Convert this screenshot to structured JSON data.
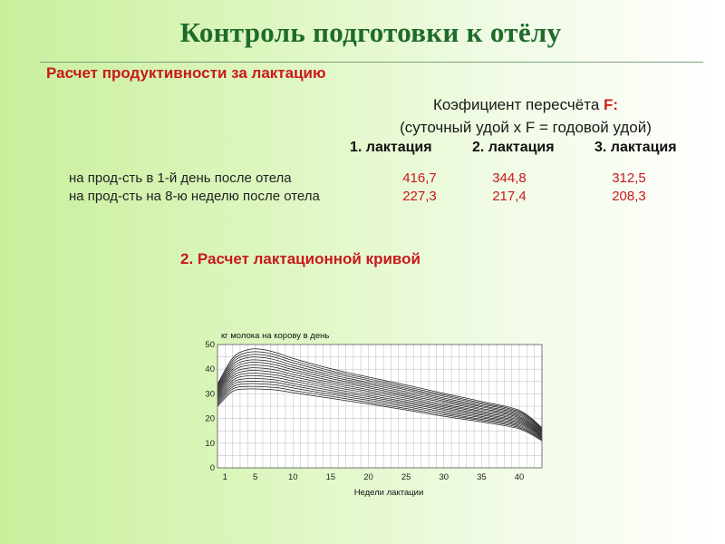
{
  "title": "Контроль подготовки к отёлу",
  "subtitle_productivity": "Расчет продуктивности за лактацию",
  "coefficient": {
    "title_prefix": "Коэфициент пересчёта ",
    "title_accent": "F:",
    "formula": "(суточный удой х F = годовой удой)",
    "headers": [
      "1. лактация",
      "2. лактация",
      "3. лактация"
    ]
  },
  "table": {
    "rows": [
      {
        "label": "на прод-сть в 1-й день после отела",
        "values": [
          "416,7",
          "344,8",
          "312,5"
        ]
      },
      {
        "label": "на прод-сть на 8-ю неделю после отела",
        "values": [
          "227,3",
          "217,4",
          "208,3"
        ]
      }
    ]
  },
  "subtitle_curve": "2. Расчет лактационной кривой",
  "chart_data": {
    "type": "line",
    "title": "",
    "ylabel": "кг молока на корову в день",
    "xlabel": "Недели лактации",
    "xlim": [
      0,
      43
    ],
    "ylim": [
      0,
      50
    ],
    "x_ticks": [
      "1",
      "5",
      "10",
      "15",
      "20",
      "25",
      "30",
      "35",
      "40"
    ],
    "y_ticks": [
      "0",
      "10",
      "20",
      "30",
      "40",
      "50"
    ],
    "grid": true,
    "line_color": "#1a1a1a",
    "x": [
      0,
      2,
      4,
      6,
      8,
      10,
      15,
      20,
      25,
      30,
      35,
      40,
      43
    ],
    "series": [
      {
        "values": [
          33.9,
          44.5,
          47.9,
          48.0,
          46.5,
          44.4,
          40.2,
          36.8,
          33.6,
          30.2,
          26.9,
          23.3,
          16.3
        ]
      },
      {
        "values": [
          33.3,
          43.6,
          46.8,
          46.9,
          45.5,
          43.5,
          39.4,
          36.1,
          32.9,
          29.6,
          26.3,
          22.8,
          15.9
        ]
      },
      {
        "values": [
          32.7,
          42.7,
          45.7,
          45.8,
          44.5,
          42.6,
          38.6,
          35.4,
          32.2,
          29.0,
          25.8,
          22.3,
          15.6
        ]
      },
      {
        "values": [
          32.1,
          41.8,
          44.7,
          44.7,
          43.5,
          41.6,
          37.8,
          34.6,
          31.6,
          28.3,
          25.2,
          21.8,
          15.2
        ]
      },
      {
        "values": [
          31.5,
          40.9,
          43.6,
          43.6,
          42.5,
          40.7,
          37.0,
          33.9,
          30.9,
          27.7,
          24.7,
          21.3,
          14.9
        ]
      },
      {
        "values": [
          30.9,
          40.0,
          42.6,
          42.6,
          41.5,
          39.8,
          36.2,
          33.2,
          30.2,
          27.1,
          24.1,
          20.8,
          14.5
        ]
      },
      {
        "values": [
          30.3,
          39.1,
          41.5,
          41.5,
          40.5,
          38.9,
          35.4,
          32.5,
          29.5,
          26.5,
          23.6,
          20.3,
          14.2
        ]
      },
      {
        "values": [
          29.7,
          38.2,
          40.4,
          40.4,
          39.5,
          37.9,
          34.6,
          31.7,
          28.9,
          25.8,
          23.0,
          19.8,
          13.8
        ]
      },
      {
        "values": [
          29.1,
          37.3,
          39.4,
          39.3,
          38.5,
          37.0,
          33.8,
          31.0,
          28.2,
          25.2,
          22.5,
          19.3,
          13.5
        ]
      },
      {
        "values": [
          28.5,
          36.4,
          38.3,
          38.2,
          37.5,
          36.1,
          33.0,
          30.3,
          27.5,
          24.6,
          21.9,
          18.8,
          13.1
        ]
      },
      {
        "values": [
          27.9,
          35.5,
          37.3,
          37.2,
          36.5,
          35.2,
          32.2,
          29.5,
          26.8,
          24.0,
          21.4,
          18.3,
          12.8
        ]
      },
      {
        "values": [
          27.3,
          34.6,
          36.2,
          36.1,
          35.5,
          34.2,
          31.4,
          28.8,
          26.2,
          23.4,
          20.8,
          17.8,
          12.4
        ]
      },
      {
        "values": [
          26.7,
          33.7,
          35.1,
          35.0,
          34.5,
          33.3,
          30.6,
          28.1,
          25.5,
          22.7,
          20.3,
          17.3,
          12.1
        ]
      },
      {
        "values": [
          26.1,
          32.8,
          34.1,
          34.0,
          33.5,
          32.4,
          29.8,
          27.4,
          24.8,
          22.1,
          19.7,
          16.8,
          11.7
        ]
      },
      {
        "values": [
          25.5,
          31.9,
          33.0,
          32.9,
          32.5,
          31.4,
          29.0,
          26.6,
          24.1,
          21.5,
          19.2,
          16.3,
          11.4
        ]
      },
      {
        "values": [
          24.9,
          31.0,
          32.0,
          31.9,
          31.5,
          30.5,
          28.2,
          25.9,
          23.5,
          20.9,
          18.6,
          15.8,
          11.0
        ]
      }
    ]
  }
}
